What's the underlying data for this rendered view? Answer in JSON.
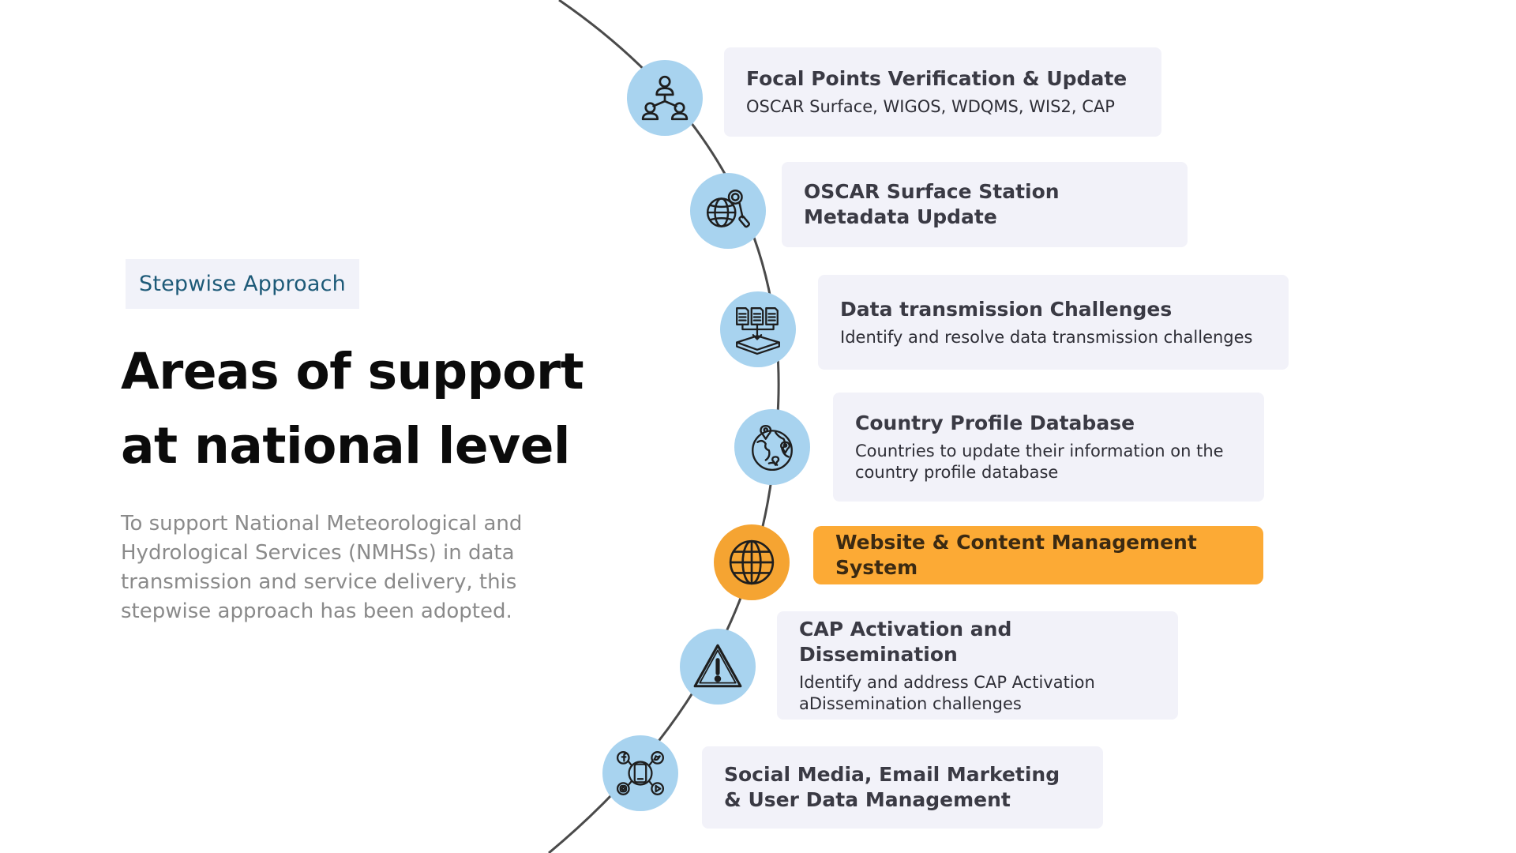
{
  "tag": {
    "label": "Stepwise Approach"
  },
  "title": {
    "line1": "Areas of support",
    "line2": "at national level"
  },
  "description": "To support National Meteorological and Hydrological Services (NMHSs) in data transmission and service delivery, this stepwise approach has been adopted.",
  "colors": {
    "icon_bg": "#a8d3ef",
    "active_bg": "#f5a432",
    "card_bg": "#f2f2f9",
    "active_card_bg": "#fcaa35",
    "arc": "#4a4a4a"
  },
  "steps": [
    {
      "icon": "people-network-icon",
      "title": "Focal Points Verification & Update",
      "subtitle": "OSCAR Surface, WIGOS, WDQMS, WIS2, CAP",
      "active": false
    },
    {
      "icon": "globe-search-icon",
      "title": "OSCAR Surface Station Metadata Update",
      "subtitle": "",
      "active": false
    },
    {
      "icon": "data-transfer-icon",
      "title": "Data transmission Challenges",
      "subtitle": "Identify and resolve data transmission challenges",
      "active": false
    },
    {
      "icon": "world-pins-icon",
      "title": "Country Profile Database",
      "subtitle": "Countries to update their information on the country profile database",
      "active": false
    },
    {
      "icon": "globe-icon",
      "title": "Website & Content Management System",
      "subtitle": "",
      "active": true
    },
    {
      "icon": "warning-icon",
      "title": "CAP Activation and Dissemination",
      "subtitle": "Identify and address CAP Activation aDissemination challenges",
      "active": false
    },
    {
      "icon": "social-media-icon",
      "title": "Social Media, Email Marketing & User Data Management",
      "subtitle": "",
      "active": false
    }
  ]
}
